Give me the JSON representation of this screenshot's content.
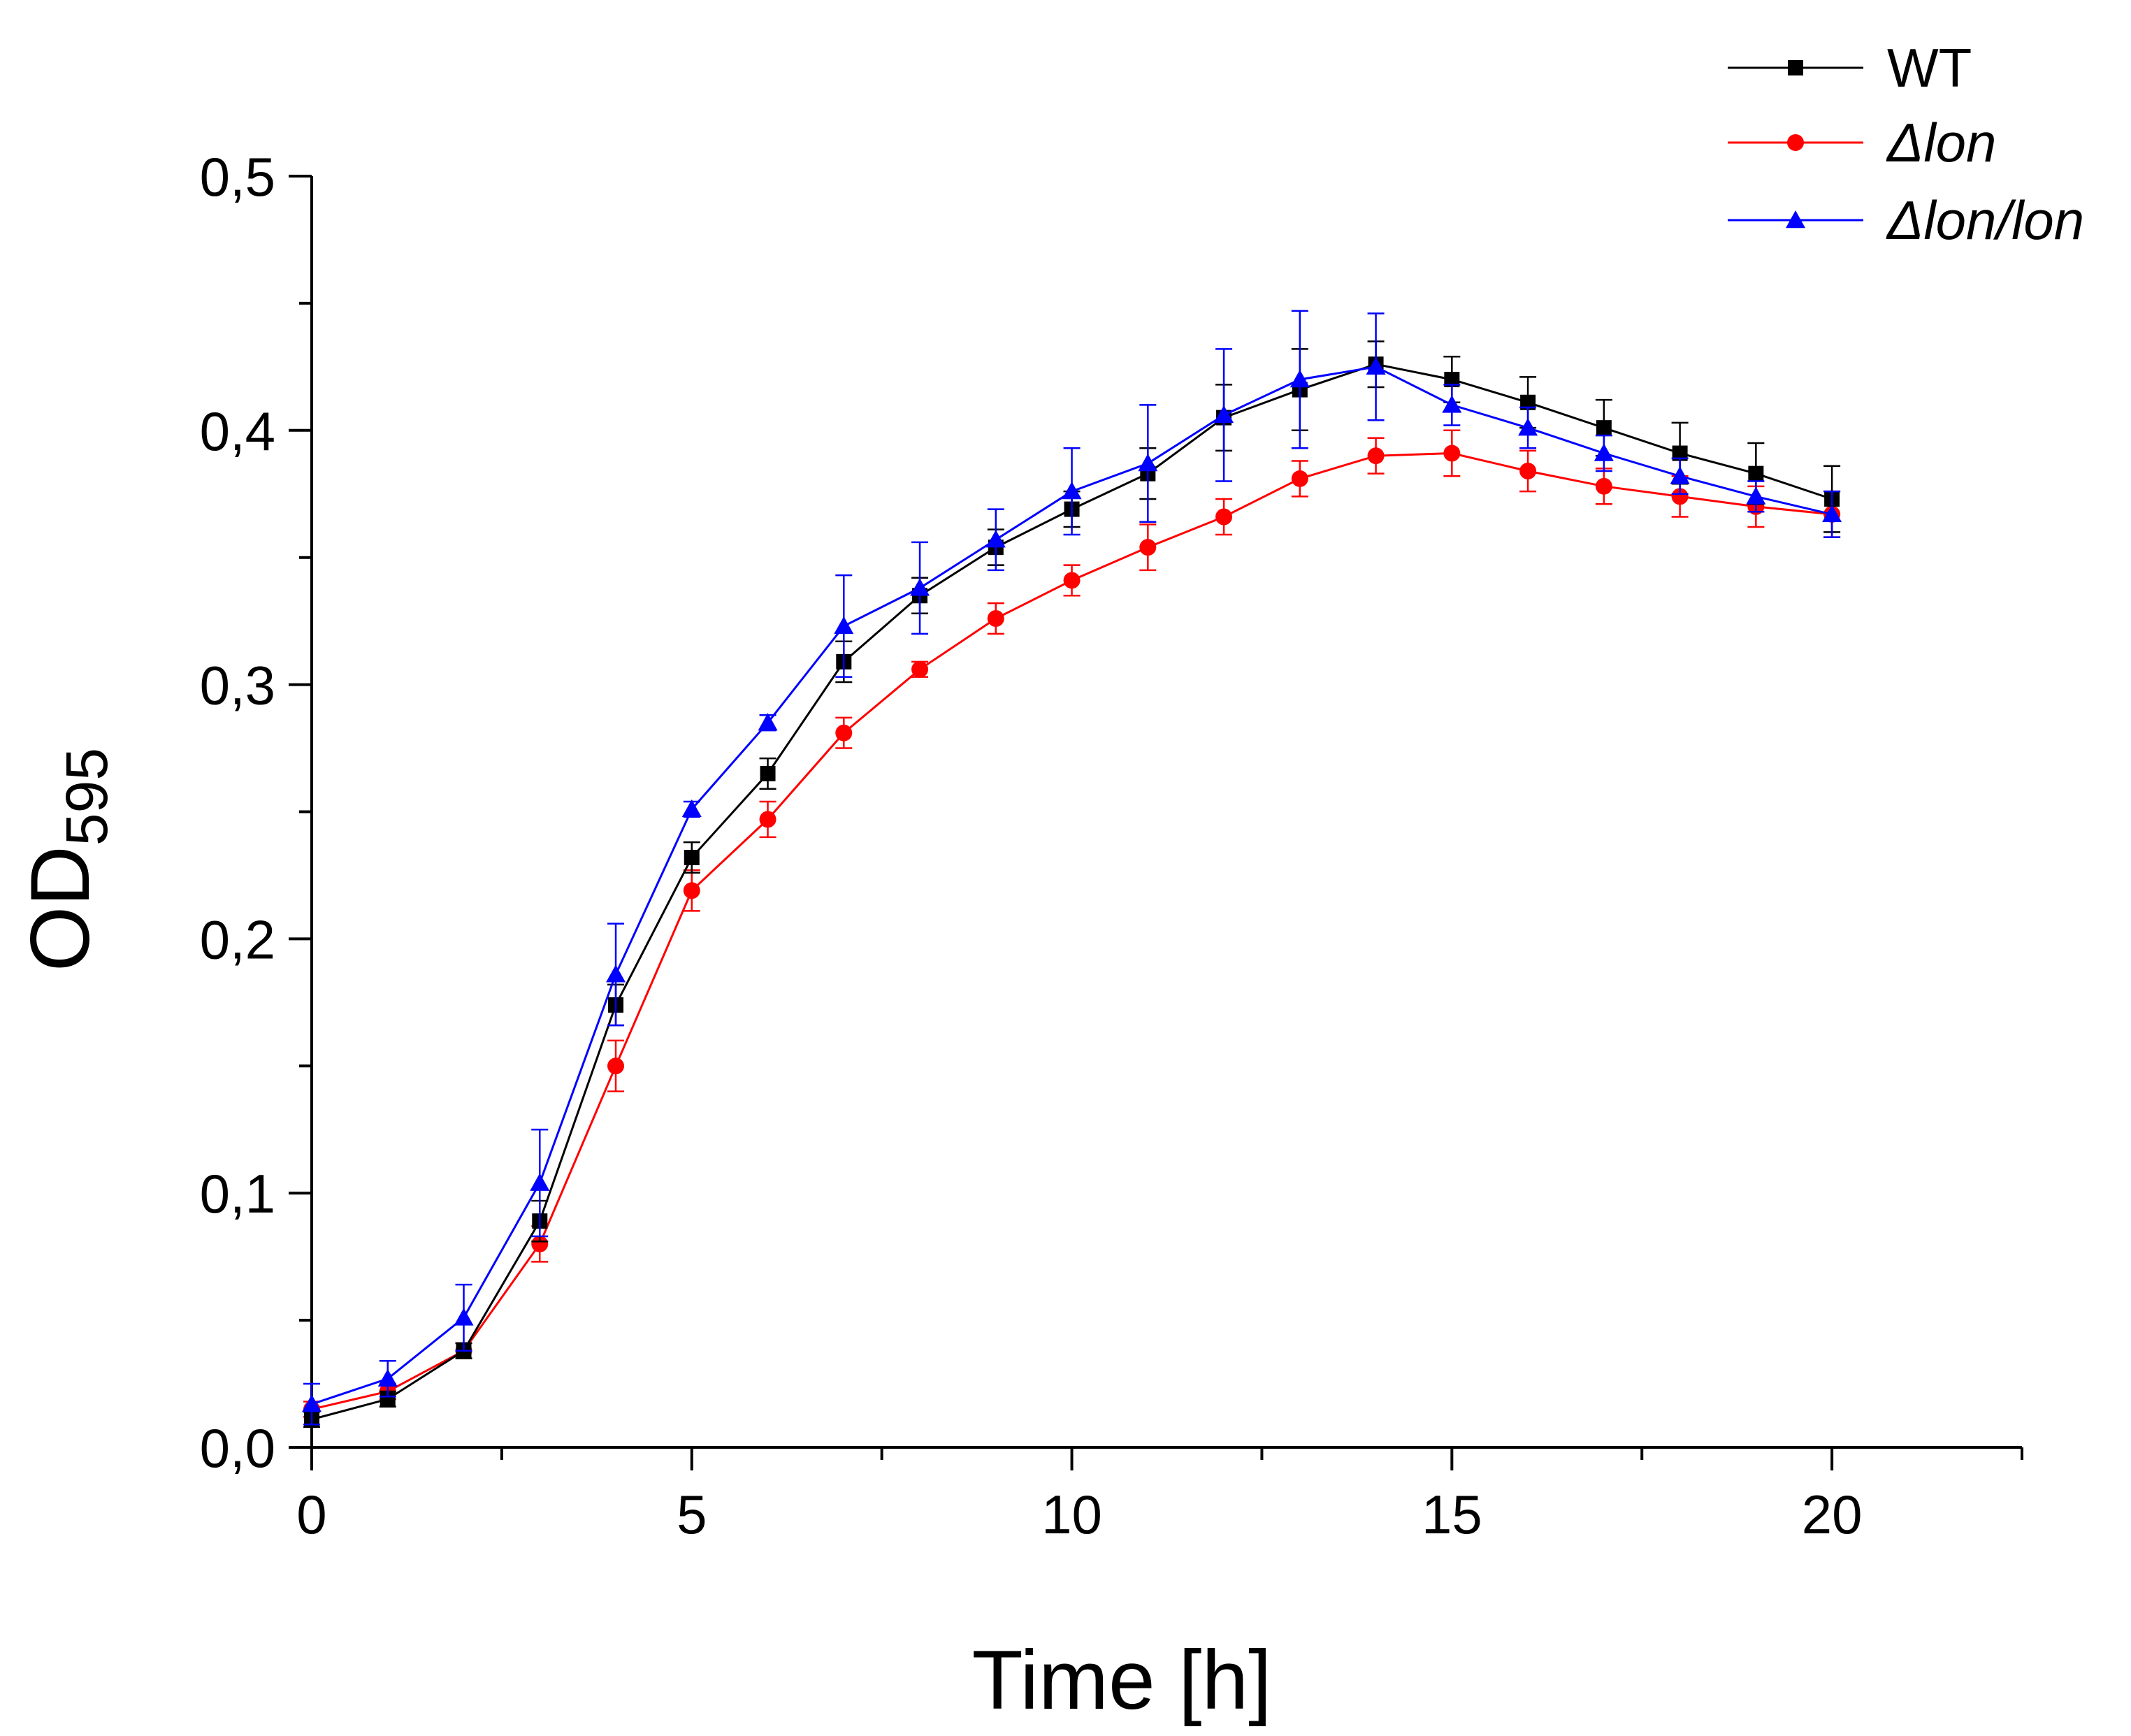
{
  "chart_data": {
    "type": "line",
    "title": "",
    "xlabel": "Time [h]",
    "ylabel_main": "OD",
    "ylabel_sub": "595",
    "xlim": [
      0,
      22.5
    ],
    "ylim": [
      0,
      0.5
    ],
    "x_ticks": [
      0,
      5,
      10,
      15,
      20
    ],
    "x_tick_labels": [
      "0",
      "5",
      "10",
      "15",
      "20"
    ],
    "x_minor_step": 2.5,
    "y_ticks": [
      0.0,
      0.1,
      0.2,
      0.3,
      0.4,
      0.5
    ],
    "y_tick_labels": [
      "0,0",
      "0,1",
      "0,2",
      "0,3",
      "0,4",
      "0,5"
    ],
    "y_minor_step": 0.05,
    "grid": false,
    "legend_position": "top-right",
    "x": [
      0,
      1,
      2,
      3,
      4,
      5,
      6,
      7,
      8,
      9,
      10,
      11,
      12,
      13,
      14,
      15,
      16,
      17,
      18,
      19,
      20
    ],
    "series": [
      {
        "name": "WT",
        "italic": false,
        "color": "#000000",
        "marker": "square",
        "values": [
          0.011,
          0.019,
          0.038,
          0.089,
          0.174,
          0.232,
          0.265,
          0.309,
          0.335,
          0.354,
          0.369,
          0.383,
          0.405,
          0.416,
          0.426,
          0.42,
          0.411,
          0.401,
          0.391,
          0.383,
          0.373
        ],
        "errors": [
          0.003,
          0.003,
          0.003,
          0.008,
          0.008,
          0.006,
          0.006,
          0.008,
          0.007,
          0.007,
          0.007,
          0.01,
          0.013,
          0.016,
          0.009,
          0.009,
          0.01,
          0.011,
          0.012,
          0.012,
          0.013
        ]
      },
      {
        "name": "Δlon",
        "italic": true,
        "color": "#ff0000",
        "marker": "circle",
        "values": [
          0.015,
          0.022,
          0.038,
          0.08,
          0.15,
          0.219,
          0.247,
          0.281,
          0.306,
          0.326,
          0.341,
          0.354,
          0.366,
          0.381,
          0.39,
          0.391,
          0.384,
          0.378,
          0.374,
          0.37,
          0.367
        ],
        "errors": [
          0.003,
          0.003,
          0.003,
          0.007,
          0.01,
          0.008,
          0.007,
          0.006,
          0.003,
          0.006,
          0.006,
          0.009,
          0.007,
          0.007,
          0.007,
          0.009,
          0.008,
          0.007,
          0.008,
          0.008,
          0.009
        ]
      },
      {
        "name": "Δlon/lon",
        "italic": true,
        "color": "#0000ff",
        "marker": "triangle",
        "values": [
          0.017,
          0.027,
          0.051,
          0.104,
          0.186,
          0.251,
          0.285,
          0.323,
          0.338,
          0.357,
          0.376,
          0.387,
          0.406,
          0.42,
          0.425,
          0.41,
          0.401,
          0.391,
          0.382,
          0.374,
          0.367
        ],
        "errors": [
          0.008,
          0.007,
          0.013,
          0.021,
          0.02,
          0.003,
          0.003,
          0.02,
          0.018,
          0.012,
          0.017,
          0.023,
          0.026,
          0.027,
          0.021,
          0.008,
          0.008,
          0.007,
          0.007,
          0.006,
          0.009
        ]
      }
    ]
  }
}
